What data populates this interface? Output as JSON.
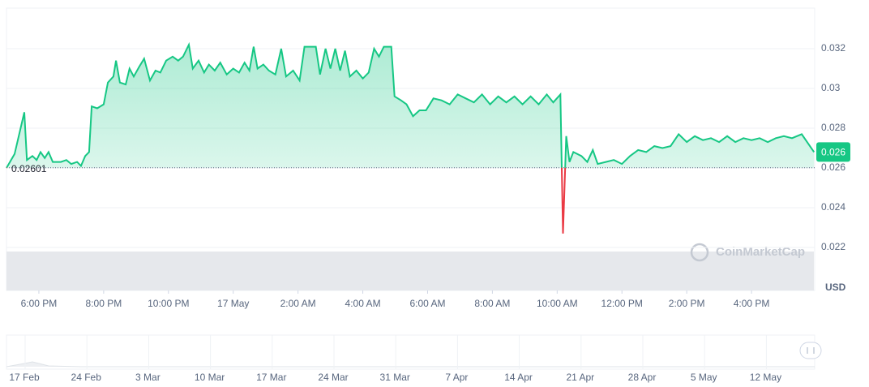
{
  "chart_data": {
    "type": "line",
    "x": [
      17.0,
      17.25,
      17.55,
      17.63,
      17.8,
      17.93,
      18.05,
      18.18,
      18.3,
      18.43,
      18.68,
      18.85,
      19.0,
      19.18,
      19.3,
      19.43,
      19.55,
      19.63,
      19.8,
      20.0,
      20.13,
      20.3,
      20.38,
      20.5,
      20.68,
      20.8,
      20.93,
      21.1,
      21.25,
      21.43,
      21.6,
      21.75,
      21.93,
      22.13,
      22.3,
      22.45,
      22.63,
      22.75,
      22.93,
      23.1,
      23.25,
      23.43,
      23.6,
      23.8,
      24.0,
      24.18,
      24.35,
      24.5,
      24.63,
      24.75,
      24.93,
      25.1,
      25.3,
      25.48,
      25.63,
      25.85,
      26.05,
      26.2,
      26.55,
      26.68,
      26.85,
      27.0,
      27.15,
      27.3,
      27.45,
      27.6,
      27.8,
      28.0,
      28.18,
      28.35,
      28.5,
      28.65,
      28.88,
      28.98,
      29.18,
      29.35,
      29.55,
      29.75,
      29.95,
      30.18,
      30.43,
      30.68,
      30.93,
      31.18,
      31.43,
      31.68,
      31.93,
      32.18,
      32.43,
      32.68,
      32.93,
      33.18,
      33.43,
      33.68,
      33.88,
      34.1,
      34.18,
      34.28,
      34.38,
      34.5,
      34.75,
      34.93,
      35.1,
      35.25,
      35.5,
      35.75,
      36.0,
      36.25,
      36.5,
      36.75,
      37.0,
      37.25,
      37.5,
      37.75,
      38.0,
      38.25,
      38.5,
      38.75,
      39.0,
      39.25,
      39.5,
      39.75,
      40.0,
      40.25,
      40.5,
      40.75,
      41.0,
      41.25,
      41.55,
      41.93
    ],
    "values": [
      0.026,
      0.0267,
      0.0288,
      0.0264,
      0.0266,
      0.0264,
      0.0268,
      0.0265,
      0.0268,
      0.0263,
      0.0263,
      0.0264,
      0.0262,
      0.0263,
      0.0261,
      0.0266,
      0.0268,
      0.0291,
      0.029,
      0.0292,
      0.0303,
      0.0306,
      0.0314,
      0.0303,
      0.0302,
      0.031,
      0.0306,
      0.0311,
      0.0315,
      0.0304,
      0.0309,
      0.0308,
      0.0314,
      0.0316,
      0.0314,
      0.0316,
      0.0322,
      0.031,
      0.0314,
      0.0308,
      0.0312,
      0.0309,
      0.0313,
      0.0307,
      0.031,
      0.0308,
      0.0313,
      0.0309,
      0.0321,
      0.031,
      0.0312,
      0.0309,
      0.0307,
      0.032,
      0.0306,
      0.0309,
      0.0304,
      0.0321,
      0.0321,
      0.0307,
      0.032,
      0.031,
      0.032,
      0.0309,
      0.0319,
      0.0306,
      0.0309,
      0.0305,
      0.0308,
      0.032,
      0.0316,
      0.0321,
      0.0321,
      0.0296,
      0.0294,
      0.0292,
      0.0286,
      0.0289,
      0.0289,
      0.0295,
      0.0294,
      0.0292,
      0.0297,
      0.0295,
      0.0293,
      0.0297,
      0.0292,
      0.0296,
      0.0293,
      0.0296,
      0.0292,
      0.0296,
      0.0292,
      0.0297,
      0.0293,
      0.0297,
      0.0227,
      0.0276,
      0.0263,
      0.0268,
      0.0266,
      0.0263,
      0.0269,
      0.0262,
      0.0263,
      0.0264,
      0.0262,
      0.0266,
      0.0269,
      0.0268,
      0.0271,
      0.027,
      0.0271,
      0.0277,
      0.0273,
      0.0276,
      0.0274,
      0.0275,
      0.0273,
      0.0276,
      0.0273,
      0.0275,
      0.0274,
      0.0275,
      0.0273,
      0.0275,
      0.0276,
      0.0275,
      0.0277,
      0.0268
    ],
    "color": "#16c784",
    "below_color": "#ea3943",
    "reference": 0.02601,
    "price_label": "0.026",
    "y_label": "USD",
    "watermark": "CoinMarketCap",
    "xlim": [
      17,
      41.95
    ],
    "xticks": [
      {
        "value": 18,
        "label": "6:00 PM"
      },
      {
        "value": 20,
        "label": "8:00 PM"
      },
      {
        "value": 22,
        "label": "10:00 PM"
      },
      {
        "value": 24,
        "label": "17 May"
      },
      {
        "value": 26,
        "label": "2:00 AM"
      },
      {
        "value": 28,
        "label": "4:00 AM"
      },
      {
        "value": 30,
        "label": "6:00 AM"
      },
      {
        "value": 32,
        "label": "8:00 AM"
      },
      {
        "value": 34,
        "label": "10:00 AM"
      },
      {
        "value": 36,
        "label": "12:00 PM"
      },
      {
        "value": 38,
        "label": "2:00 PM"
      },
      {
        "value": 40,
        "label": "4:00 PM"
      }
    ],
    "ylim": [
      0.022,
      0.034
    ],
    "yticks": [
      0.022,
      0.024,
      0.026,
      0.028,
      0.03,
      0.032
    ],
    "grid": true,
    "navigator_labels": [
      "17 Feb",
      "24 Feb",
      "3 Mar",
      "10 Mar",
      "17 Mar",
      "24 Mar",
      "31 Mar",
      "7 Apr",
      "14 Apr",
      "21 Apr",
      "28 Apr",
      "5 May",
      "12 May"
    ]
  }
}
